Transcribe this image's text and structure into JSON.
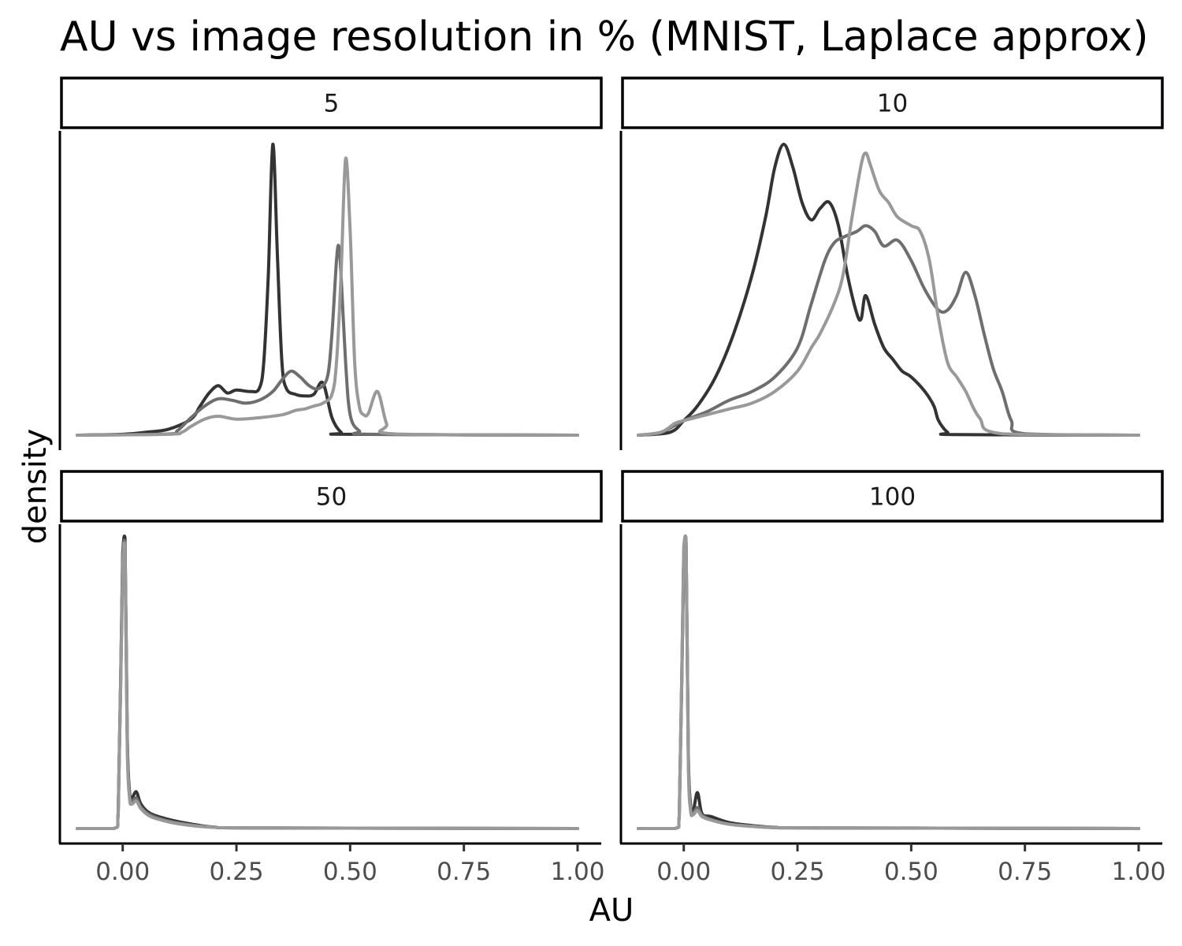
{
  "chart_data": {
    "type": "line",
    "title": "AU vs image resolution in % (MNIST, Laplace approx)",
    "xlabel": "AU",
    "ylabel": "density",
    "xlim": [
      -0.1,
      1.0
    ],
    "x_ticks": [
      0.0,
      0.25,
      0.5,
      0.75,
      1.0
    ],
    "x_tick_labels": [
      "0.00",
      "0.25",
      "0.50",
      "0.75",
      "1.00"
    ],
    "y_ticks_shown": false,
    "grid": false,
    "legend": "none",
    "series_colors": [
      "#333333",
      "#6e6e6e",
      "#999999"
    ],
    "panels": [
      {
        "label": "5",
        "y_scale": "relative",
        "series": [
          {
            "color": "#333333",
            "x": [
              -0.1,
              0.0,
              0.05,
              0.1,
              0.15,
              0.17,
              0.19,
              0.21,
              0.23,
              0.25,
              0.28,
              0.3,
              0.31,
              0.32,
              0.33,
              0.34,
              0.35,
              0.36,
              0.38,
              0.4,
              0.42,
              0.44,
              0.46,
              0.48,
              0.5,
              1.0
            ],
            "y": [
              0,
              0.003,
              0.01,
              0.02,
              0.055,
              0.1,
              0.145,
              0.17,
              0.145,
              0.155,
              0.15,
              0.16,
              0.25,
              0.55,
              1.0,
              0.62,
              0.25,
              0.16,
              0.14,
              0.135,
              0.14,
              0.18,
              0.06,
              0.01,
              0.003,
              0
            ]
          },
          {
            "color": "#6e6e6e",
            "x": [
              -0.1,
              0.1,
              0.12,
              0.15,
              0.18,
              0.21,
              0.24,
              0.27,
              0.3,
              0.33,
              0.35,
              0.37,
              0.39,
              0.41,
              0.43,
              0.45,
              0.46,
              0.47,
              0.475,
              0.48,
              0.49,
              0.5,
              0.52,
              0.55,
              1.0
            ],
            "y": [
              0,
              0.004,
              0.015,
              0.06,
              0.1,
              0.125,
              0.12,
              0.11,
              0.12,
              0.15,
              0.19,
              0.22,
              0.2,
              0.17,
              0.16,
              0.2,
              0.35,
              0.6,
              0.65,
              0.55,
              0.25,
              0.07,
              0.015,
              0.003,
              0
            ]
          },
          {
            "color": "#999999",
            "x": [
              -0.1,
              0.1,
              0.13,
              0.15,
              0.18,
              0.21,
              0.25,
              0.3,
              0.35,
              0.38,
              0.4,
              0.42,
              0.44,
              0.46,
              0.47,
              0.48,
              0.49,
              0.5,
              0.51,
              0.52,
              0.53,
              0.54,
              0.56,
              0.58,
              0.6,
              1.0
            ],
            "y": [
              0,
              0.003,
              0.01,
              0.03,
              0.055,
              0.065,
              0.055,
              0.06,
              0.07,
              0.085,
              0.09,
              0.1,
              0.11,
              0.14,
              0.25,
              0.55,
              0.95,
              0.7,
              0.25,
              0.1,
              0.07,
              0.075,
              0.15,
              0.04,
              0.004,
              0
            ]
          }
        ]
      },
      {
        "label": "10",
        "y_scale": "relative",
        "series": [
          {
            "color": "#333333",
            "x": [
              -0.1,
              -0.03,
              0.0,
              0.03,
              0.07,
              0.11,
              0.15,
              0.18,
              0.2,
              0.22,
              0.24,
              0.26,
              0.28,
              0.3,
              0.32,
              0.34,
              0.36,
              0.38,
              0.39,
              0.4,
              0.42,
              0.44,
              0.46,
              0.48,
              0.5,
              0.53,
              0.55,
              0.56,
              0.58,
              0.6,
              1.0
            ],
            "y": [
              0,
              0.01,
              0.05,
              0.1,
              0.2,
              0.35,
              0.55,
              0.75,
              0.92,
              1.0,
              0.92,
              0.8,
              0.74,
              0.78,
              0.8,
              0.72,
              0.55,
              0.42,
              0.4,
              0.48,
              0.38,
              0.3,
              0.26,
              0.22,
              0.2,
              0.15,
              0.1,
              0.05,
              0.01,
              0.002,
              0
            ]
          },
          {
            "color": "#6e6e6e",
            "x": [
              -0.1,
              -0.05,
              0.0,
              0.05,
              0.1,
              0.15,
              0.2,
              0.25,
              0.28,
              0.31,
              0.33,
              0.35,
              0.38,
              0.4,
              0.42,
              0.44,
              0.47,
              0.5,
              0.53,
              0.56,
              0.58,
              0.6,
              0.62,
              0.64,
              0.66,
              0.68,
              0.7,
              0.72,
              0.75,
              1.0
            ],
            "y": [
              0,
              0.01,
              0.05,
              0.08,
              0.12,
              0.15,
              0.2,
              0.3,
              0.45,
              0.6,
              0.66,
              0.68,
              0.7,
              0.72,
              0.7,
              0.65,
              0.67,
              0.6,
              0.5,
              0.43,
              0.43,
              0.48,
              0.56,
              0.48,
              0.35,
              0.23,
              0.15,
              0.05,
              0.005,
              0
            ]
          },
          {
            "color": "#999999",
            "x": [
              -0.1,
              -0.05,
              -0.02,
              0.0,
              0.05,
              0.1,
              0.15,
              0.2,
              0.25,
              0.28,
              0.3,
              0.33,
              0.35,
              0.37,
              0.39,
              0.4,
              0.41,
              0.43,
              0.45,
              0.47,
              0.5,
              0.52,
              0.54,
              0.56,
              0.58,
              0.6,
              0.62,
              0.65,
              0.7,
              1.0
            ],
            "y": [
              0,
              0.01,
              0.04,
              0.05,
              0.07,
              0.09,
              0.11,
              0.15,
              0.22,
              0.3,
              0.35,
              0.45,
              0.55,
              0.75,
              0.93,
              0.97,
              0.93,
              0.84,
              0.8,
              0.75,
              0.72,
              0.7,
              0.6,
              0.4,
              0.25,
              0.2,
              0.15,
              0.06,
              0.005,
              0
            ]
          }
        ]
      },
      {
        "label": "50",
        "y_scale": "relative",
        "series": [
          {
            "color": "#333333",
            "x": [
              -0.1,
              -0.02,
              -0.01,
              0.0,
              0.005,
              0.01,
              0.015,
              0.02,
              0.03,
              0.04,
              0.06,
              0.1,
              0.15,
              0.2,
              0.3,
              1.0
            ],
            "y": [
              0,
              0,
              0.05,
              0.9,
              0.95,
              0.3,
              0.12,
              0.1,
              0.12,
              0.08,
              0.05,
              0.03,
              0.015,
              0.005,
              0.002,
              0
            ]
          },
          {
            "color": "#6e6e6e",
            "x": [
              -0.1,
              -0.02,
              -0.01,
              0.0,
              0.005,
              0.01,
              0.015,
              0.02,
              0.03,
              0.04,
              0.06,
              0.1,
              0.15,
              0.2,
              0.3,
              1.0
            ],
            "y": [
              0,
              0,
              0.05,
              0.88,
              0.93,
              0.28,
              0.11,
              0.09,
              0.1,
              0.07,
              0.045,
              0.025,
              0.012,
              0.004,
              0.002,
              0
            ]
          },
          {
            "color": "#999999",
            "x": [
              -0.1,
              -0.02,
              -0.01,
              0.0,
              0.005,
              0.01,
              0.015,
              0.02,
              0.03,
              0.04,
              0.06,
              0.1,
              0.15,
              0.2,
              0.3,
              1.0
            ],
            "y": [
              0,
              0,
              0.05,
              0.85,
              0.9,
              0.26,
              0.1,
              0.08,
              0.09,
              0.065,
              0.04,
              0.022,
              0.01,
              0.004,
              0.002,
              0
            ]
          }
        ]
      },
      {
        "label": "100",
        "y_scale": "relative",
        "series": [
          {
            "color": "#333333",
            "x": [
              -0.1,
              -0.02,
              -0.01,
              0.0,
              0.005,
              0.01,
              0.015,
              0.02,
              0.03,
              0.04,
              0.06,
              0.1,
              0.15,
              0.2,
              0.3,
              1.0
            ],
            "y": [
              0,
              0,
              0.04,
              0.9,
              0.95,
              0.25,
              0.08,
              0.05,
              0.12,
              0.05,
              0.04,
              0.02,
              0.01,
              0.004,
              0.002,
              0
            ]
          },
          {
            "color": "#6e6e6e",
            "x": [
              -0.1,
              -0.02,
              -0.01,
              0.0,
              0.005,
              0.01,
              0.015,
              0.02,
              0.03,
              0.04,
              0.06,
              0.1,
              0.15,
              0.2,
              0.3,
              1.0
            ],
            "y": [
              0,
              0,
              0.04,
              0.92,
              0.96,
              0.24,
              0.07,
              0.05,
              0.07,
              0.045,
              0.03,
              0.015,
              0.008,
              0.003,
              0.002,
              0
            ]
          },
          {
            "color": "#999999",
            "x": [
              -0.1,
              -0.02,
              -0.01,
              0.0,
              0.005,
              0.01,
              0.015,
              0.02,
              0.03,
              0.04,
              0.06,
              0.1,
              0.15,
              0.2,
              0.3,
              1.0
            ],
            "y": [
              0,
              0,
              0.04,
              0.94,
              0.97,
              0.22,
              0.06,
              0.045,
              0.06,
              0.04,
              0.028,
              0.014,
              0.007,
              0.003,
              0.002,
              0
            ]
          }
        ]
      }
    ]
  }
}
